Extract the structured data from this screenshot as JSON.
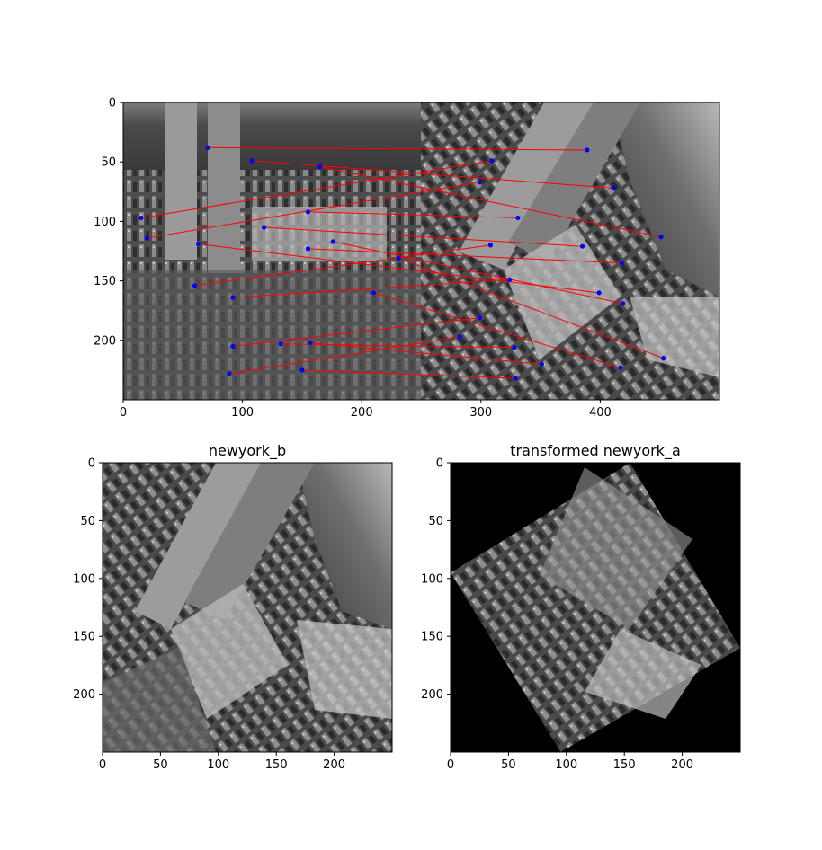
{
  "chart_data": [
    {
      "type": "scatter",
      "panel": "feature-matches",
      "title": "",
      "xlabel": "",
      "ylabel": "",
      "xlim": [
        0,
        500
      ],
      "ylim": [
        250,
        0
      ],
      "x_ticks": [
        0,
        100,
        200,
        300,
        400
      ],
      "y_ticks": [
        0,
        50,
        100,
        150,
        200
      ],
      "image_split_x": 250,
      "grid": false,
      "colors": {
        "match_line": "#ff0000",
        "keypoint": "#0000ff"
      },
      "matches": [
        {
          "a": [
            71,
            38
          ],
          "b": [
            389,
            40
          ]
        },
        {
          "a": [
            108,
            49
          ],
          "b": [
            411,
            72
          ]
        },
        {
          "a": [
            165,
            54
          ],
          "b": [
            451,
            113
          ]
        },
        {
          "a": [
            15,
            97
          ],
          "b": [
            309,
            49
          ]
        },
        {
          "a": [
            20,
            114
          ],
          "b": [
            299,
            67
          ]
        },
        {
          "a": [
            155,
            92
          ],
          "b": [
            331,
            97
          ]
        },
        {
          "a": [
            63,
            119
          ],
          "b": [
            399,
            160
          ]
        },
        {
          "a": [
            118,
            105
          ],
          "b": [
            385,
            121
          ]
        },
        {
          "a": [
            155,
            123
          ],
          "b": [
            418,
            135
          ]
        },
        {
          "a": [
            176,
            117
          ],
          "b": [
            419,
            169
          ]
        },
        {
          "a": [
            231,
            131
          ],
          "b": [
            453,
            215
          ]
        },
        {
          "a": [
            60,
            154
          ],
          "b": [
            308,
            120
          ]
        },
        {
          "a": [
            92,
            164
          ],
          "b": [
            324,
            149
          ]
        },
        {
          "a": [
            210,
            160
          ],
          "b": [
            417,
            223
          ]
        },
        {
          "a": [
            92,
            205
          ],
          "b": [
            299,
            181
          ]
        },
        {
          "a": [
            132,
            203
          ],
          "b": [
            328,
            206
          ]
        },
        {
          "a": [
            157,
            202
          ],
          "b": [
            351,
            220
          ]
        },
        {
          "a": [
            89,
            228
          ],
          "b": [
            282,
            197
          ]
        },
        {
          "a": [
            150,
            225
          ],
          "b": [
            329,
            232
          ]
        }
      ]
    },
    {
      "type": "heatmap",
      "panel": "newyork_b",
      "title": "newyork_b",
      "xlim": [
        0,
        250
      ],
      "ylim": [
        250,
        0
      ],
      "x_ticks": [
        0,
        50,
        100,
        150,
        200
      ],
      "y_ticks": [
        0,
        50,
        100,
        150,
        200
      ],
      "colormap": "gray"
    },
    {
      "type": "heatmap",
      "panel": "transformed-newyork_a",
      "title": "transformed newyork_a",
      "xlim": [
        0,
        250
      ],
      "ylim": [
        250,
        0
      ],
      "x_ticks": [
        0,
        50,
        100,
        150,
        200
      ],
      "y_ticks": [
        0,
        50,
        100,
        150,
        200
      ],
      "colormap": "gray",
      "valid_region_corners": [
        [
          0,
          95
        ],
        [
          155,
          0
        ],
        [
          250,
          160
        ],
        [
          95,
          250
        ]
      ]
    }
  ]
}
